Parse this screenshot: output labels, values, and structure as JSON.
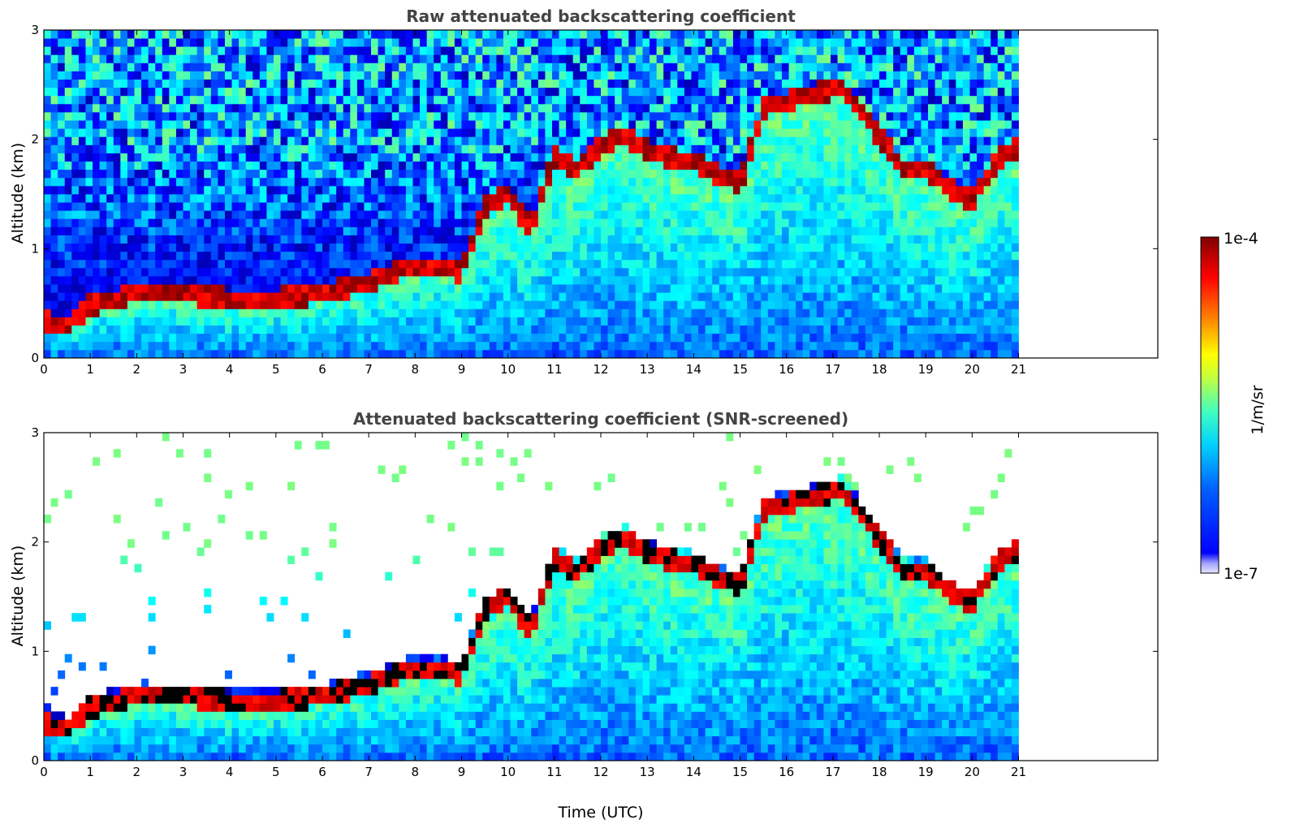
{
  "chart_data": [
    {
      "type": "heatmap",
      "title": "Raw attenuated backscattering coefficient",
      "xlabel": "",
      "ylabel": "Altitude (km)",
      "xlim": [
        0,
        24
      ],
      "ylim": [
        0,
        3
      ],
      "x_ticks": [
        "0",
        "1",
        "2",
        "3",
        "4",
        "5",
        "6",
        "7",
        "8",
        "9",
        "10",
        "11",
        "12",
        "13",
        "14",
        "15",
        "16",
        "17",
        "18",
        "19",
        "20",
        "21"
      ],
      "y_ticks": [
        "0",
        "1",
        "2",
        "3"
      ],
      "data_extent_hours": [
        0,
        21
      ],
      "color_scale": "log",
      "value_range": [
        "1e-7",
        "1e-4"
      ],
      "cloud_top_km": [
        [
          0,
          0.35
        ],
        [
          0.5,
          0.3
        ],
        [
          1.0,
          0.5
        ],
        [
          1.5,
          0.55
        ],
        [
          2.0,
          0.6
        ],
        [
          2.5,
          0.6
        ],
        [
          3.0,
          0.6
        ],
        [
          4.0,
          0.55
        ],
        [
          5.0,
          0.55
        ],
        [
          6.0,
          0.6
        ],
        [
          7.0,
          0.7
        ],
        [
          7.8,
          0.85
        ],
        [
          8.5,
          0.85
        ],
        [
          9.0,
          0.8
        ],
        [
          9.5,
          1.4
        ],
        [
          10.0,
          1.5
        ],
        [
          10.5,
          1.2
        ],
        [
          11.0,
          1.85
        ],
        [
          11.5,
          1.75
        ],
        [
          12.0,
          1.95
        ],
        [
          12.5,
          2.05
        ],
        [
          13.0,
          1.9
        ],
        [
          13.5,
          1.85
        ],
        [
          14.0,
          1.8
        ],
        [
          14.5,
          1.7
        ],
        [
          15.0,
          1.6
        ],
        [
          15.5,
          2.3
        ],
        [
          17.2,
          2.5
        ],
        [
          18.5,
          1.75
        ],
        [
          19.0,
          1.75
        ],
        [
          19.5,
          1.55
        ],
        [
          20.0,
          1.45
        ],
        [
          20.5,
          1.8
        ],
        [
          21.0,
          1.95
        ]
      ]
    },
    {
      "type": "heatmap",
      "title": "Attenuated backscattering coefficient (SNR-screened)",
      "xlabel": "Time (UTC)",
      "ylabel": "Altitude (km)",
      "xlim": [
        0,
        24
      ],
      "ylim": [
        0,
        3
      ],
      "x_ticks": [
        "0",
        "1",
        "2",
        "3",
        "4",
        "5",
        "6",
        "7",
        "8",
        "9",
        "10",
        "11",
        "12",
        "13",
        "14",
        "15",
        "16",
        "17",
        "18",
        "19",
        "20",
        "21"
      ],
      "y_ticks": [
        "0",
        "1",
        "2",
        "3"
      ],
      "data_extent_hours": [
        0,
        21
      ],
      "color_scale": "log",
      "value_range": [
        "1e-7",
        "1e-4"
      ],
      "cloud_top_km": [
        [
          0,
          0.35
        ],
        [
          0.5,
          0.3
        ],
        [
          1.0,
          0.5
        ],
        [
          1.5,
          0.55
        ],
        [
          2.0,
          0.6
        ],
        [
          2.5,
          0.6
        ],
        [
          3.0,
          0.6
        ],
        [
          4.0,
          0.55
        ],
        [
          5.0,
          0.55
        ],
        [
          6.0,
          0.6
        ],
        [
          7.0,
          0.7
        ],
        [
          7.8,
          0.85
        ],
        [
          8.5,
          0.85
        ],
        [
          9.0,
          0.8
        ],
        [
          9.5,
          1.4
        ],
        [
          10.0,
          1.5
        ],
        [
          10.5,
          1.2
        ],
        [
          11.0,
          1.85
        ],
        [
          11.5,
          1.75
        ],
        [
          12.0,
          1.95
        ],
        [
          12.5,
          2.05
        ],
        [
          13.0,
          1.9
        ],
        [
          13.5,
          1.85
        ],
        [
          14.0,
          1.8
        ],
        [
          14.5,
          1.7
        ],
        [
          15.0,
          1.6
        ],
        [
          15.5,
          2.3
        ],
        [
          17.2,
          2.5
        ],
        [
          18.5,
          1.75
        ],
        [
          19.0,
          1.75
        ],
        [
          19.5,
          1.55
        ],
        [
          20.0,
          1.45
        ],
        [
          20.5,
          1.8
        ],
        [
          21.0,
          1.95
        ]
      ]
    }
  ],
  "colorbar": {
    "label": "1/m/sr",
    "max_label": "1e-4",
    "min_label": "1e-7",
    "colormap": "jet",
    "stops": [
      "#00008f",
      "#0000ff",
      "#0080ff",
      "#00ffff",
      "#80ff80",
      "#ffff00",
      "#ff8000",
      "#ff0000",
      "#800000"
    ],
    "low_end_colors": [
      "#e6e6ff",
      "#c4c4ff",
      "#9f9fff"
    ]
  }
}
